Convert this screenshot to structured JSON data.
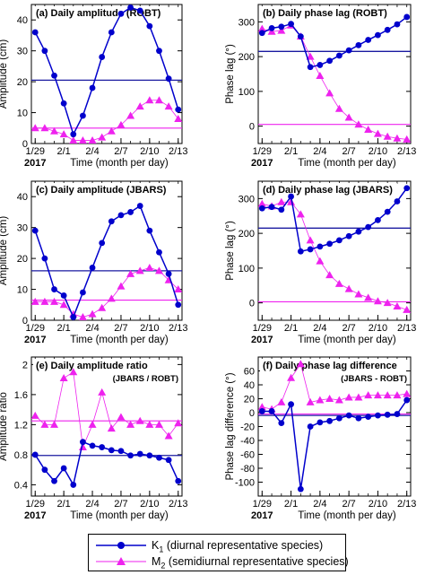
{
  "chart_data": [
    {
      "type": "line",
      "title": "(a) Daily amplitude (ROBT)",
      "xlabel": "Time (month per day)",
      "ylabel": "Amplitude (cm)",
      "year_label": "2017",
      "ylim": [
        0,
        45
      ],
      "yticks": [
        0,
        10,
        20,
        30,
        40
      ],
      "xtick_labels": [
        "1/29",
        "2/1",
        "2/4",
        "2/7",
        "2/10",
        "2/13"
      ],
      "x_days": [
        1,
        2,
        3,
        4,
        5,
        6,
        7,
        8,
        9,
        10,
        11,
        12,
        13,
        14,
        15,
        16
      ],
      "series": [
        {
          "name": "K1",
          "values": [
            36,
            30,
            22,
            13,
            3,
            9,
            18,
            28,
            36,
            42,
            44,
            43,
            38,
            30,
            21,
            11
          ],
          "mean": 20.5
        },
        {
          "name": "M2",
          "values": [
            5,
            5,
            4,
            3,
            1,
            1,
            1,
            2,
            4,
            6,
            9,
            12,
            14,
            14,
            12,
            8
          ],
          "mean": 5
        }
      ]
    },
    {
      "type": "line",
      "title": "(b) Daily phase lag (ROBT)",
      "xlabel": "Time (month per day)",
      "ylabel": "Phase lag (°)",
      "year_label": "2017",
      "ylim": [
        -50,
        350
      ],
      "yticks": [
        0,
        100,
        200,
        300
      ],
      "xtick_labels": [
        "1/29",
        "2/1",
        "2/4",
        "2/7",
        "2/10",
        "2/13"
      ],
      "x_days": [
        1,
        2,
        3,
        4,
        5,
        6,
        7,
        8,
        9,
        10,
        11,
        12,
        13,
        14,
        15,
        16
      ],
      "series": [
        {
          "name": "K1",
          "values": [
            268,
            282,
            286,
            294,
            258,
            170,
            176,
            188,
            203,
            218,
            233,
            248,
            262,
            277,
            293,
            314
          ],
          "mean": 215
        },
        {
          "name": "M2",
          "values": [
            280,
            272,
            275,
            290,
            258,
            200,
            145,
            95,
            50,
            25,
            5,
            -10,
            -22,
            -30,
            -35,
            -38
          ],
          "mean": 5
        }
      ]
    },
    {
      "type": "line",
      "title": "(c) Daily amplitude (JBARS)",
      "xlabel": "Time (month per day)",
      "ylabel": "Amplitude (cm)",
      "year_label": "2017",
      "ylim": [
        0,
        45
      ],
      "yticks": [
        0,
        10,
        20,
        30,
        40
      ],
      "xtick_labels": [
        "1/29",
        "2/1",
        "2/4",
        "2/7",
        "2/10",
        "2/13"
      ],
      "x_days": [
        1,
        2,
        3,
        4,
        5,
        6,
        7,
        8,
        9,
        10,
        11,
        12,
        13,
        14,
        15,
        16
      ],
      "series": [
        {
          "name": "K1",
          "values": [
            29,
            20,
            10,
            8,
            1,
            9,
            17,
            25,
            32,
            34,
            35,
            37,
            29,
            22,
            15,
            5
          ],
          "mean": 16
        },
        {
          "name": "M2",
          "values": [
            6,
            6,
            6,
            5,
            2,
            1,
            2,
            4,
            7,
            11,
            15,
            16,
            17,
            16,
            13,
            10
          ],
          "mean": 6.5
        }
      ]
    },
    {
      "type": "line",
      "title": "(d) Daily phase lag (JBARS)",
      "xlabel": "Time (month per day)",
      "ylabel": "Phase lag (°)",
      "year_label": "2017",
      "ylim": [
        -50,
        350
      ],
      "yticks": [
        0,
        100,
        200,
        300
      ],
      "xtick_labels": [
        "1/29",
        "2/1",
        "2/4",
        "2/7",
        "2/10",
        "2/13"
      ],
      "x_days": [
        1,
        2,
        3,
        4,
        5,
        6,
        7,
        8,
        9,
        10,
        11,
        12,
        13,
        14,
        15,
        16
      ],
      "series": [
        {
          "name": "K1",
          "values": [
            272,
            276,
            268,
            306,
            148,
            154,
            162,
            170,
            180,
            192,
            205,
            218,
            238,
            262,
            292,
            330
          ],
          "mean": 215
        },
        {
          "name": "M2",
          "values": [
            285,
            278,
            290,
            290,
            255,
            180,
            120,
            80,
            55,
            40,
            25,
            15,
            5,
            0,
            -10,
            -20
          ],
          "mean": 3
        }
      ]
    },
    {
      "type": "line",
      "title": "(e) Daily amplitude ratio",
      "annotation": "(JBARS / ROBT)",
      "xlabel": "Time (month per day)",
      "ylabel": "Amplitude ratio",
      "year_label": "2017",
      "ylim": [
        0.25,
        2.1
      ],
      "yticks": [
        0.4,
        0.8,
        1.2,
        1.6,
        2.0
      ],
      "xtick_labels": [
        "1/29",
        "2/1",
        "2/4",
        "2/7",
        "2/10",
        "2/13"
      ],
      "x_days": [
        1,
        2,
        3,
        4,
        5,
        6,
        7,
        8,
        9,
        10,
        11,
        12,
        13,
        14,
        15,
        16
      ],
      "series": [
        {
          "name": "K1",
          "values": [
            0.8,
            0.6,
            0.45,
            0.62,
            0.4,
            0.97,
            0.92,
            0.9,
            0.86,
            0.85,
            0.79,
            0.81,
            0.79,
            0.76,
            0.73,
            0.45
          ],
          "mean": 0.79
        },
        {
          "name": "M2",
          "values": [
            1.32,
            1.2,
            1.2,
            1.82,
            1.9,
            0.9,
            1.2,
            1.63,
            1.15,
            1.3,
            1.2,
            1.25,
            1.2,
            1.2,
            1.05,
            1.22
          ],
          "mean": 1.25
        }
      ]
    },
    {
      "type": "line",
      "title": "(f) Daily phase lag difference",
      "annotation": "(JBARS - ROBT)",
      "xlabel": "Time (month per day)",
      "ylabel": "Phase lag difference (°)",
      "year_label": "2017",
      "ylim": [
        -120,
        80
      ],
      "yticks": [
        -100,
        -80,
        -60,
        -40,
        -20,
        0,
        20,
        40,
        60
      ],
      "xtick_labels": [
        "1/29",
        "2/1",
        "2/4",
        "2/7",
        "2/10",
        "2/13"
      ],
      "x_days": [
        1,
        2,
        3,
        4,
        5,
        6,
        7,
        8,
        9,
        10,
        11,
        12,
        13,
        14,
        15,
        16
      ],
      "series": [
        {
          "name": "K1",
          "values": [
            2,
            2,
            -15,
            12,
            -110,
            -20,
            -14,
            -12,
            -8,
            -4,
            -8,
            -6,
            -4,
            -3,
            -2,
            18
          ],
          "mean": -4
        },
        {
          "name": "M2",
          "values": [
            8,
            5,
            15,
            50,
            70,
            15,
            18,
            20,
            18,
            22,
            22,
            25,
            25,
            25,
            25,
            27
          ],
          "mean": -2
        }
      ]
    }
  ],
  "legend": {
    "k1": {
      "symbol": "K",
      "sub": "1",
      "text": " (diurnal representative species)",
      "color": "#0000cc"
    },
    "m2": {
      "symbol": "M",
      "sub": "2",
      "text": " (semidiurnal representative species)",
      "color": "#ee22ee"
    }
  }
}
